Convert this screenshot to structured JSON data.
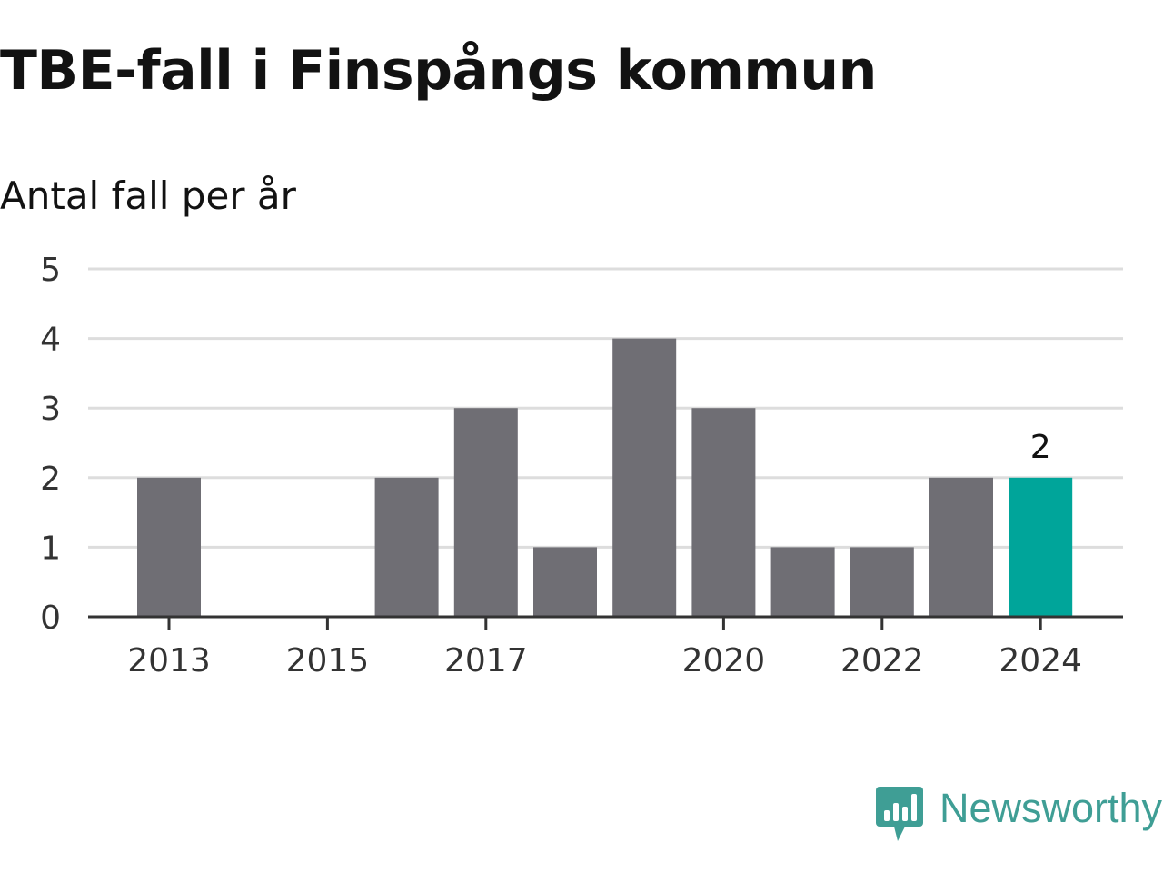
{
  "title": "TBE-fall i Finspångs kommun",
  "subtitle": "Antal fall per år",
  "brand": {
    "name": "Newsworthy",
    "color": "#3f9e95",
    "icon": "newsworthy-logo-icon"
  },
  "colors": {
    "bar": "#6f6e74",
    "highlight": "#00a59a",
    "grid": "#dddddd",
    "axis": "#333333"
  },
  "chart_data": {
    "type": "bar",
    "title": "TBE-fall i Finspångs kommun",
    "subtitle": "Antal fall per år",
    "xlabel": "",
    "ylabel": "",
    "categories": [
      "2013",
      "2014",
      "2015",
      "2016",
      "2017",
      "2018",
      "2019",
      "2020",
      "2021",
      "2022",
      "2023",
      "2024"
    ],
    "values": [
      2,
      0,
      0,
      2,
      3,
      1,
      4,
      3,
      1,
      1,
      2,
      2
    ],
    "x_tick_labels": [
      "2013",
      "2015",
      "2017",
      "2020",
      "2022",
      "2024"
    ],
    "y_ticks": [
      0,
      1,
      2,
      3,
      4,
      5
    ],
    "ylim": [
      0,
      5
    ],
    "grid": true,
    "highlight_category": "2024",
    "data_labels": [
      {
        "category": "2024",
        "text": "2"
      }
    ]
  }
}
